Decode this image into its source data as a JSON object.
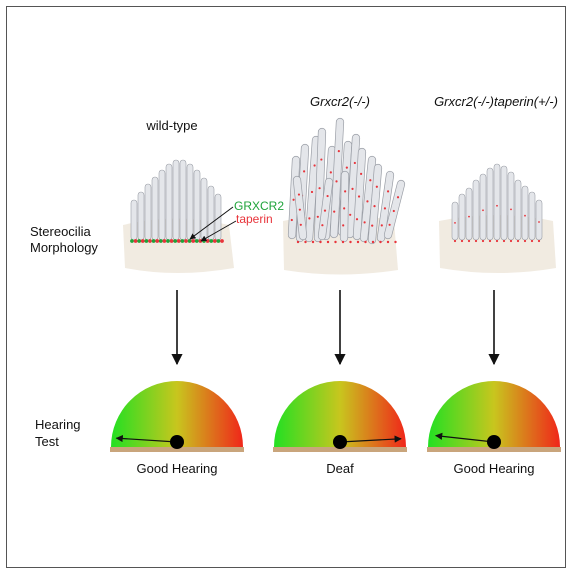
{
  "columns": [
    {
      "title": "wild-type",
      "italic": false,
      "result": "Good Hearing",
      "needle_angle_deg": 168
    },
    {
      "title": "Grxcr2(-/-)",
      "italic": true,
      "result": "Deaf",
      "needle_angle_deg": 10
    },
    {
      "title": "Grxcr2(-/-)taperin(+/-)",
      "italic": true,
      "result": "Good Hearing",
      "needle_angle_deg": 160
    }
  ],
  "row_labels": {
    "morphology_line1": "Stereocilia",
    "morphology_line2": "Morphology",
    "hearing_line1": "Hearing",
    "hearing_line2": "Test"
  },
  "legend": {
    "grxcr2": "GRXCR2",
    "taperin": "taperin"
  },
  "colors": {
    "grxcr2": "#1fa33a",
    "taperin": "#e8343b",
    "cilia_fill": "#e4e6ea",
    "cilia_stroke": "#9a9ea6",
    "cell_body": "#f1ebe1",
    "gauge_base": "#c9a57c",
    "gauge_green": "#22e022",
    "gauge_yellow": "#c8c61e",
    "gauge_red": "#f0261a"
  }
}
